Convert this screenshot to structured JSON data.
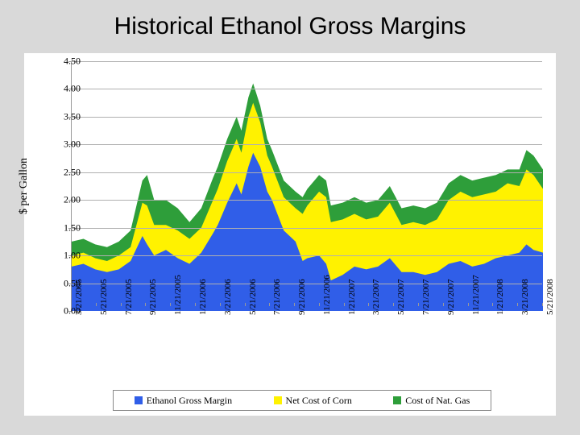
{
  "title": "Historical Ethanol Gross Margins",
  "ylabel": "$ per Gallon",
  "chart": {
    "type": "stacked-area",
    "background_color": "#ffffff",
    "grid_color": "#b0b0b0",
    "ylim": [
      0.0,
      4.5
    ],
    "ytick_step": 0.5,
    "yticks": [
      "0.00",
      "0.50",
      "1.00",
      "1.50",
      "2.00",
      "2.50",
      "3.00",
      "3.50",
      "4.00",
      "4.50"
    ],
    "xticks": [
      "3/21/2005",
      "5/21/2005",
      "7/21/2005",
      "9/21/2005",
      "11/21/2005",
      "1/21/2006",
      "3/21/2006",
      "5/21/2006",
      "7/21/2006",
      "9/21/2006",
      "11/21/2006",
      "1/21/2007",
      "3/21/2007",
      "5/21/2007",
      "7/21/2007",
      "9/21/2007",
      "11/21/2007",
      "1/21/2008",
      "3/21/2008",
      "5/21/2008"
    ],
    "series": [
      {
        "name": "Ethanol Gross Margin",
        "color": "#305ee8"
      },
      {
        "name": "Net Cost of Corn",
        "color": "#fff200"
      },
      {
        "name": "Cost of Nat. Gas",
        "color": "#2e9e3a"
      }
    ],
    "data_comment": "values are cumulative stack tops in $ per gallon; s1=blue top, s2=blue+yellow top, s3=blue+yellow+green top",
    "points": [
      {
        "x": 0.0,
        "s1": 0.8,
        "s2": 1.0,
        "s3": 1.25
      },
      {
        "x": 0.025,
        "s1": 0.85,
        "s2": 1.05,
        "s3": 1.3
      },
      {
        "x": 0.05,
        "s1": 0.75,
        "s2": 0.95,
        "s3": 1.2
      },
      {
        "x": 0.075,
        "s1": 0.7,
        "s2": 0.9,
        "s3": 1.15
      },
      {
        "x": 0.1,
        "s1": 0.75,
        "s2": 1.0,
        "s3": 1.25
      },
      {
        "x": 0.125,
        "s1": 0.9,
        "s2": 1.15,
        "s3": 1.45
      },
      {
        "x": 0.15,
        "s1": 1.35,
        "s2": 1.95,
        "s3": 2.35
      },
      {
        "x": 0.16,
        "s1": 1.2,
        "s2": 1.9,
        "s3": 2.45
      },
      {
        "x": 0.175,
        "s1": 1.0,
        "s2": 1.55,
        "s3": 2.0
      },
      {
        "x": 0.2,
        "s1": 1.1,
        "s2": 1.55,
        "s3": 2.0
      },
      {
        "x": 0.225,
        "s1": 0.95,
        "s2": 1.45,
        "s3": 1.85
      },
      {
        "x": 0.25,
        "s1": 0.85,
        "s2": 1.3,
        "s3": 1.6
      },
      {
        "x": 0.275,
        "s1": 1.05,
        "s2": 1.5,
        "s3": 1.85
      },
      {
        "x": 0.3,
        "s1": 1.4,
        "s2": 2.0,
        "s3": 2.4
      },
      {
        "x": 0.31,
        "s1": 1.55,
        "s2": 2.2,
        "s3": 2.6
      },
      {
        "x": 0.33,
        "s1": 1.95,
        "s2": 2.7,
        "s3": 3.1
      },
      {
        "x": 0.35,
        "s1": 2.3,
        "s2": 3.1,
        "s3": 3.5
      },
      {
        "x": 0.36,
        "s1": 2.1,
        "s2": 2.85,
        "s3": 3.25
      },
      {
        "x": 0.375,
        "s1": 2.6,
        "s2": 3.5,
        "s3": 3.85
      },
      {
        "x": 0.385,
        "s1": 2.85,
        "s2": 3.75,
        "s3": 4.1
      },
      {
        "x": 0.4,
        "s1": 2.6,
        "s2": 3.4,
        "s3": 3.7
      },
      {
        "x": 0.415,
        "s1": 2.15,
        "s2": 2.8,
        "s3": 3.1
      },
      {
        "x": 0.425,
        "s1": 2.0,
        "s2": 2.6,
        "s3": 2.9
      },
      {
        "x": 0.45,
        "s1": 1.45,
        "s2": 2.05,
        "s3": 2.35
      },
      {
        "x": 0.475,
        "s1": 1.25,
        "s2": 1.85,
        "s3": 2.15
      },
      {
        "x": 0.49,
        "s1": 0.9,
        "s2": 1.75,
        "s3": 2.05
      },
      {
        "x": 0.5,
        "s1": 0.95,
        "s2": 1.9,
        "s3": 2.2
      },
      {
        "x": 0.525,
        "s1": 1.0,
        "s2": 2.15,
        "s3": 2.45
      },
      {
        "x": 0.54,
        "s1": 0.85,
        "s2": 2.05,
        "s3": 2.35
      },
      {
        "x": 0.55,
        "s1": 0.55,
        "s2": 1.6,
        "s3": 1.9
      },
      {
        "x": 0.575,
        "s1": 0.65,
        "s2": 1.65,
        "s3": 1.95
      },
      {
        "x": 0.6,
        "s1": 0.8,
        "s2": 1.75,
        "s3": 2.05
      },
      {
        "x": 0.625,
        "s1": 0.75,
        "s2": 1.65,
        "s3": 1.95
      },
      {
        "x": 0.65,
        "s1": 0.8,
        "s2": 1.7,
        "s3": 2.0
      },
      {
        "x": 0.675,
        "s1": 0.95,
        "s2": 1.95,
        "s3": 2.25
      },
      {
        "x": 0.7,
        "s1": 0.7,
        "s2": 1.55,
        "s3": 1.85
      },
      {
        "x": 0.725,
        "s1": 0.7,
        "s2": 1.6,
        "s3": 1.9
      },
      {
        "x": 0.75,
        "s1": 0.65,
        "s2": 1.55,
        "s3": 1.85
      },
      {
        "x": 0.775,
        "s1": 0.7,
        "s2": 1.65,
        "s3": 1.95
      },
      {
        "x": 0.8,
        "s1": 0.85,
        "s2": 2.0,
        "s3": 2.3
      },
      {
        "x": 0.825,
        "s1": 0.9,
        "s2": 2.15,
        "s3": 2.45
      },
      {
        "x": 0.85,
        "s1": 0.8,
        "s2": 2.05,
        "s3": 2.35
      },
      {
        "x": 0.875,
        "s1": 0.85,
        "s2": 2.1,
        "s3": 2.4
      },
      {
        "x": 0.9,
        "s1": 0.95,
        "s2": 2.15,
        "s3": 2.45
      },
      {
        "x": 0.925,
        "s1": 1.0,
        "s2": 2.3,
        "s3": 2.55
      },
      {
        "x": 0.95,
        "s1": 1.05,
        "s2": 2.25,
        "s3": 2.55
      },
      {
        "x": 0.965,
        "s1": 1.2,
        "s2": 2.55,
        "s3": 2.9
      },
      {
        "x": 0.98,
        "s1": 1.1,
        "s2": 2.45,
        "s3": 2.8
      },
      {
        "x": 1.0,
        "s1": 1.05,
        "s2": 2.2,
        "s3": 2.55
      }
    ]
  },
  "legend": {
    "items": [
      {
        "label": "Ethanol Gross Margin",
        "color": "#305ee8"
      },
      {
        "label": "Net Cost of Corn",
        "color": "#fff200"
      },
      {
        "label": "Cost of Nat. Gas",
        "color": "#2e9e3a"
      }
    ]
  }
}
